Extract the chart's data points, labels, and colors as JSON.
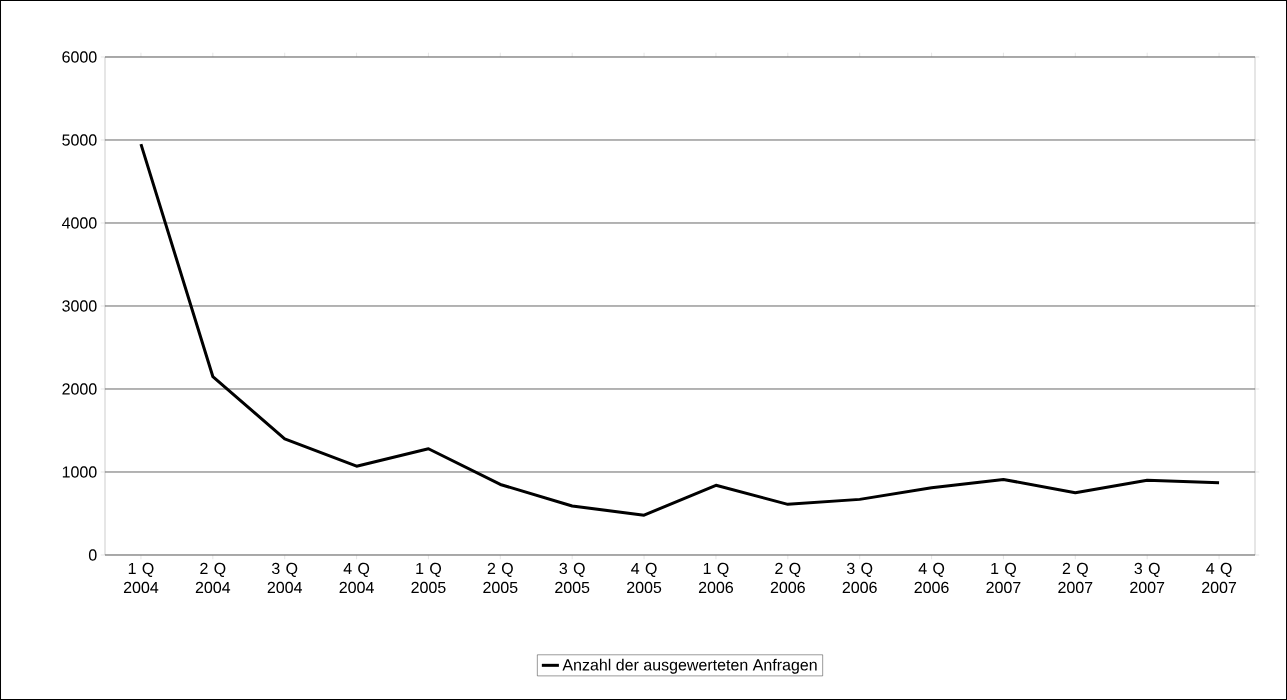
{
  "chart_data": {
    "type": "line",
    "categories": [
      "1 Q 2004",
      "2 Q 2004",
      "3 Q 2004",
      "4 Q 2004",
      "1 Q 2005",
      "2 Q 2005",
      "3 Q 2005",
      "4 Q 2005",
      "1 Q 2006",
      "2 Q 2006",
      "3 Q 2006",
      "4 Q 2006",
      "1 Q 2007",
      "2 Q 2007",
      "3 Q 2007",
      "4 Q 2007"
    ],
    "series": [
      {
        "name": "Anzahl der ausgewerteten Anfragen",
        "color": "#000000",
        "values": [
          4950,
          2150,
          1400,
          1070,
          1280,
          850,
          590,
          480,
          840,
          610,
          670,
          810,
          910,
          750,
          900,
          870
        ]
      }
    ],
    "ylim": [
      0,
      6000
    ],
    "yticks": [
      0,
      1000,
      2000,
      3000,
      4000,
      5000,
      6000
    ],
    "grid": "y",
    "legend": "bottom",
    "marker": "none",
    "line_style": "solid"
  }
}
